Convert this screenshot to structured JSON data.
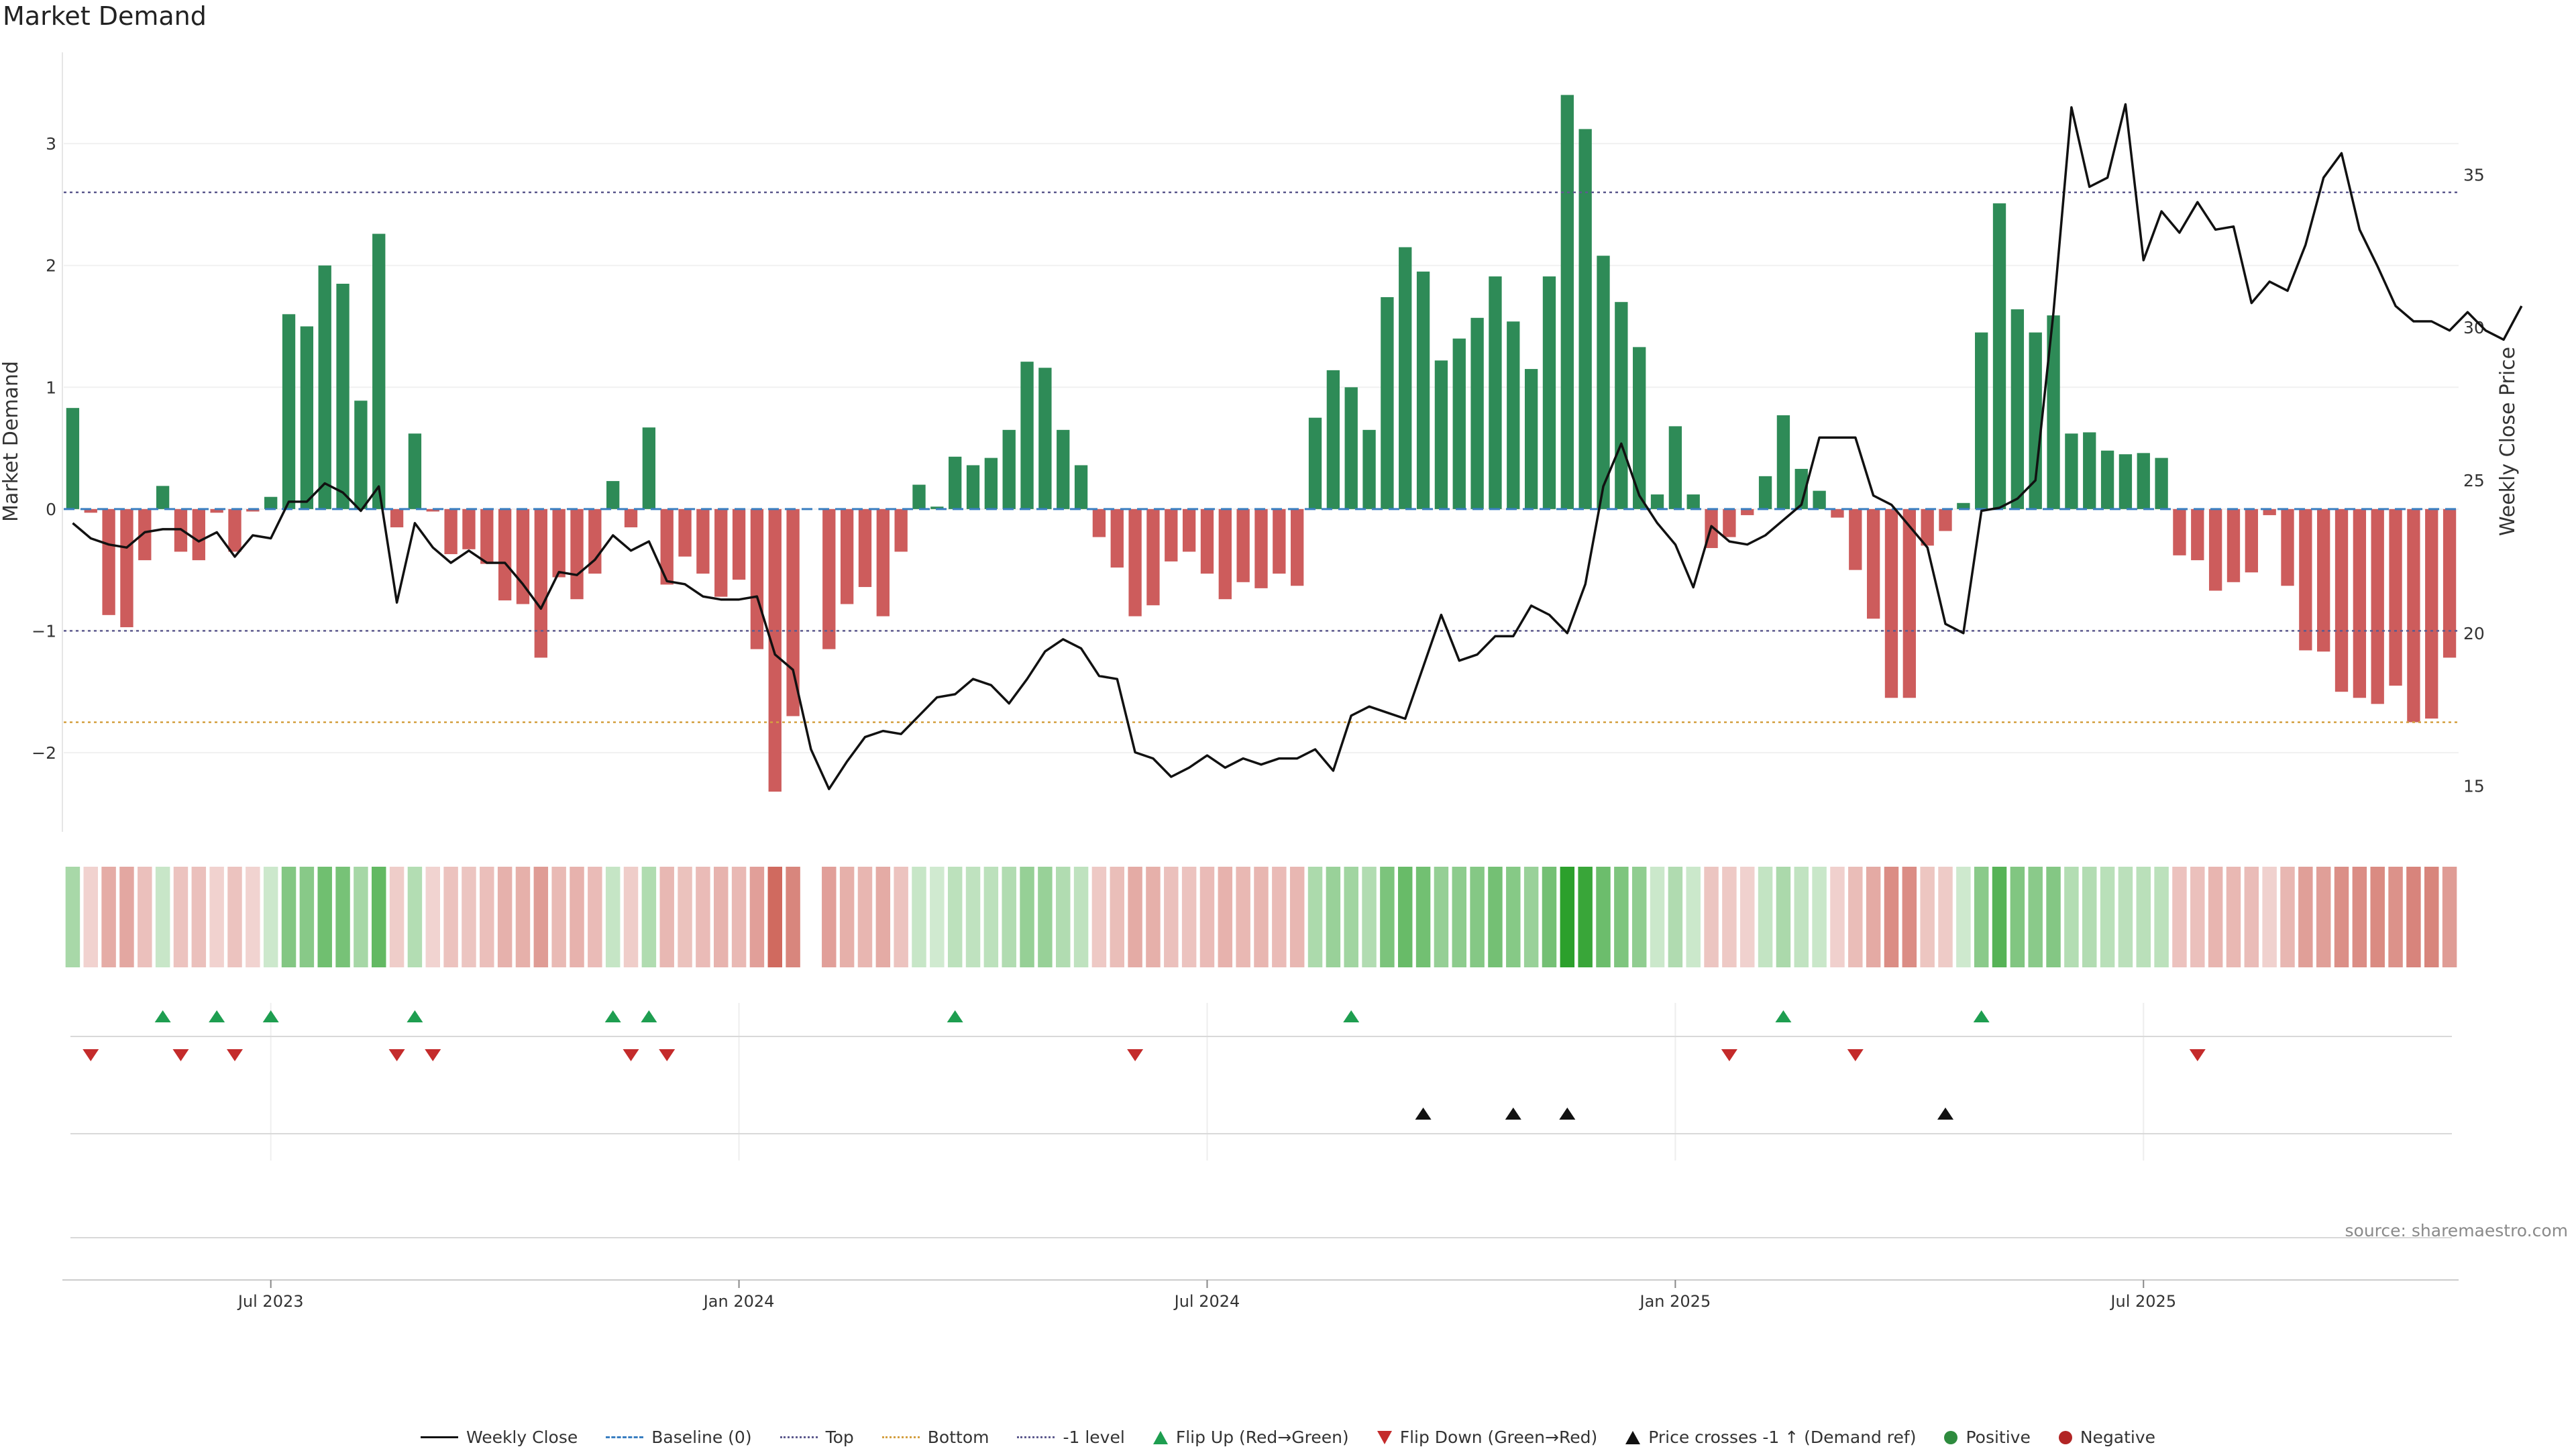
{
  "chart_data": {
    "type": "bar",
    "title": "Market Demand",
    "ylabel": "Market Demand",
    "y2label": "Weekly Close Price",
    "ylim": [
      -2.65,
      3.75
    ],
    "y2lim": [
      13.5,
      39.0
    ],
    "yticks": [
      "3",
      "2",
      "1",
      "0",
      "−1",
      "−2"
    ],
    "y2ticks": [
      "35",
      "30",
      "25",
      "20",
      "15"
    ],
    "xticks": [
      {
        "label": "Jul 2023",
        "index": 11
      },
      {
        "label": "Jan 2024",
        "index": 37
      },
      {
        "label": "Jul 2024",
        "index": 63
      },
      {
        "label": "Jan 2025",
        "index": 89
      },
      {
        "label": "Jul 2025",
        "index": 115
      }
    ],
    "reference_lines": {
      "top": 2.6,
      "bottom": -1.75,
      "minus_one": -1.0,
      "baseline": 0
    },
    "demand": [
      0.83,
      -0.03,
      -0.87,
      -0.97,
      -0.42,
      0.19,
      -0.35,
      -0.42,
      -0.03,
      -0.35,
      -0.02,
      0.1,
      1.6,
      1.5,
      2.0,
      1.85,
      0.89,
      2.26,
      -0.15,
      0.62,
      -0.02,
      -0.37,
      -0.33,
      -0.45,
      -0.75,
      -0.78,
      -1.22,
      -0.56,
      -0.74,
      -0.53,
      0.23,
      -0.15,
      0.67,
      -0.62,
      -0.39,
      -0.53,
      -0.72,
      -0.58,
      -1.15,
      -2.32,
      -1.7,
      null,
      -1.15,
      -0.78,
      -0.64,
      -0.88,
      -0.35,
      0.2,
      0.02,
      0.43,
      0.36,
      0.42,
      0.65,
      1.21,
      1.16,
      0.65,
      0.36,
      -0.23,
      -0.48,
      -0.88,
      -0.79,
      -0.43,
      -0.35,
      -0.53,
      -0.74,
      -0.6,
      -0.65,
      -0.53,
      -0.63,
      0.75,
      1.14,
      1.0,
      0.65,
      1.74,
      2.15,
      1.95,
      1.22,
      1.4,
      1.57,
      1.91,
      1.54,
      1.15,
      1.91,
      3.4,
      3.12,
      2.08,
      1.7,
      1.33,
      0.12,
      0.68,
      0.12,
      -0.32,
      -0.23,
      -0.05,
      0.27,
      0.77,
      0.33,
      0.15,
      -0.07,
      -0.5,
      -0.9,
      -1.55,
      -1.55,
      -0.3,
      -0.18,
      0.05,
      1.45,
      2.51,
      1.64,
      1.45,
      1.59,
      0.62,
      0.63,
      0.48,
      0.45,
      0.46,
      0.42,
      -0.38,
      -0.42,
      -0.67,
      -0.6,
      -0.52,
      -0.05,
      -0.63,
      -1.16,
      -1.17,
      -1.5,
      -1.55,
      -1.6,
      -1.45,
      -1.75,
      -1.72,
      -1.22
    ],
    "close": [
      23.6,
      23.1,
      22.9,
      22.8,
      23.3,
      23.4,
      23.4,
      23.0,
      23.3,
      22.5,
      23.2,
      23.1,
      24.3,
      24.3,
      24.9,
      24.6,
      24.0,
      24.8,
      21.0,
      23.6,
      22.8,
      22.3,
      22.7,
      22.3,
      22.3,
      21.6,
      20.8,
      22.0,
      21.9,
      22.4,
      23.2,
      22.7,
      23.0,
      21.7,
      21.6,
      21.2,
      21.1,
      21.1,
      21.2,
      19.3,
      18.8,
      16.2,
      14.9,
      15.8,
      16.6,
      16.8,
      16.7,
      17.3,
      17.9,
      18.0,
      18.5,
      18.3,
      17.7,
      18.5,
      19.4,
      19.8,
      19.5,
      18.6,
      18.5,
      16.1,
      15.9,
      15.3,
      15.6,
      16.0,
      15.6,
      15.9,
      15.7,
      15.9,
      15.9,
      16.2,
      15.5,
      17.3,
      17.6,
      17.4,
      17.2,
      18.9,
      20.6,
      19.1,
      19.3,
      19.9,
      19.9,
      20.9,
      20.6,
      20.0,
      21.6,
      24.8,
      26.2,
      24.5,
      23.6,
      22.9,
      21.5,
      23.5,
      23.0,
      22.9,
      23.2,
      23.7,
      24.2,
      26.4,
      26.4,
      26.4,
      24.5,
      24.2,
      23.5,
      22.8,
      20.3,
      20.0,
      24.0,
      24.1,
      24.4,
      25.0,
      30.5,
      37.2,
      34.6,
      34.9,
      37.3,
      32.2,
      33.8,
      33.1,
      34.1,
      33.2,
      33.3,
      30.8,
      31.5,
      31.2,
      32.7,
      34.9,
      35.7,
      33.2,
      32.0,
      30.7,
      30.2,
      30.2,
      29.9,
      30.5,
      29.9,
      29.6,
      30.7
    ]
  },
  "signals": {
    "flip_up": [
      5,
      8,
      11,
      19,
      30,
      32,
      49,
      71,
      95,
      106
    ],
    "flip_down": [
      1,
      6,
      9,
      18,
      20,
      31,
      33,
      59,
      92,
      99,
      118
    ],
    "price_cross": [
      75,
      80,
      83,
      104
    ]
  },
  "colors": {
    "positive_bar": "#2e8b57",
    "negative_bar": "#cd5c5c",
    "close_line": "#111111",
    "baseline": "#3a7fc1",
    "top_line": "#5d5a8e",
    "bottom_line": "#d4a041",
    "flip_up": "#1e9e50",
    "flip_down": "#c42b2b",
    "price_cross": "#111111"
  },
  "source": "source: sharemaestro.com",
  "legend": [
    {
      "label": "Weekly Close",
      "icon": "line"
    },
    {
      "label": "Baseline (0)",
      "icon": "dashed-line"
    },
    {
      "label": "Top",
      "icon": "dotted-line"
    },
    {
      "label": "Bottom",
      "icon": "dotted-line"
    },
    {
      "label": "-1 level",
      "icon": "dotted-line"
    },
    {
      "label": "Flip Up (Red→Green)",
      "icon": "triangle-up"
    },
    {
      "label": "Flip Down (Green→Red)",
      "icon": "triangle-down"
    },
    {
      "label": "Price crosses -1 ↑ (Demand ref)",
      "icon": "triangle-up"
    },
    {
      "label": "Positive",
      "icon": "circle"
    },
    {
      "label": "Negative",
      "icon": "circle"
    }
  ]
}
